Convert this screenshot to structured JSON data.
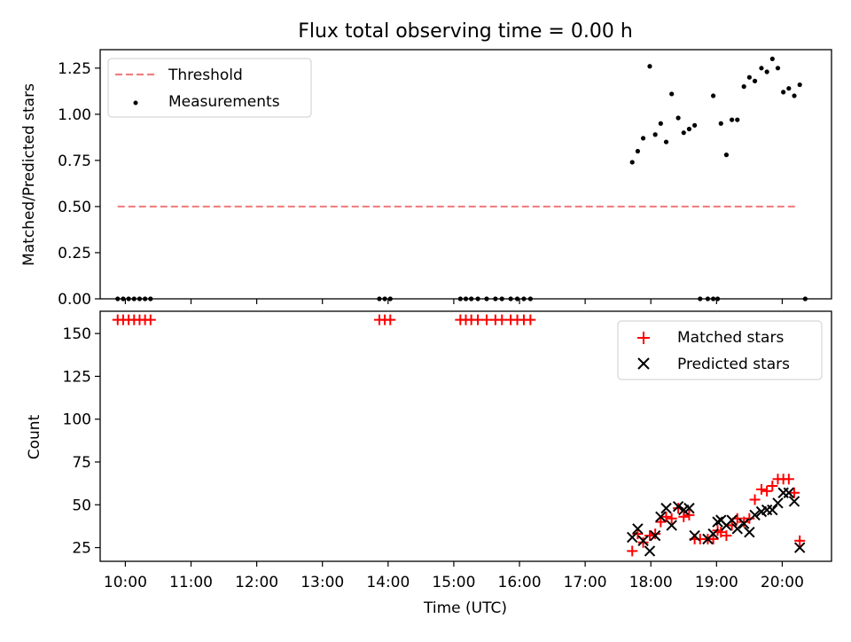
{
  "chart_data": [
    {
      "type": "scatter",
      "title": "Flux total observing time = 0.00 h",
      "ylabel": "Matched/Predicted stars",
      "xlabel": "",
      "xlim": [
        "09:37",
        "20:45"
      ],
      "ylim": [
        0,
        1.35
      ],
      "y_ticks": [
        0.0,
        0.25,
        0.5,
        0.75,
        1.0,
        1.25
      ],
      "y_tick_labels": [
        "0.00",
        "0.25",
        "0.50",
        "0.75",
        "1.00",
        "1.25"
      ],
      "grid": false,
      "legend_position": "upper left",
      "threshold": {
        "name": "Threshold",
        "style": "dashed",
        "color": "#f08080",
        "x": [
          "09:53",
          "20:13"
        ],
        "y": 0.5
      },
      "series": [
        {
          "name": "Measurements",
          "color": "#000000",
          "x": [
            "09:53",
            "09:58",
            "10:03",
            "10:08",
            "10:13",
            "10:18",
            "10:23",
            "13:52",
            "13:57",
            "14:02",
            "15:06",
            "15:11",
            "15:16",
            "15:22",
            "15:30",
            "15:38",
            "15:44",
            "15:52",
            "15:58",
            "16:04",
            "16:10",
            "17:43",
            "17:48",
            "17:53",
            "17:59",
            "18:04",
            "18:09",
            "18:14",
            "18:19",
            "18:25",
            "18:30",
            "18:35",
            "18:40",
            "18:45",
            "18:52",
            "18:57",
            "19:01",
            "18:57",
            "19:04",
            "19:09",
            "19:14",
            "19:19",
            "19:25",
            "19:30",
            "19:35",
            "19:41",
            "19:46",
            "19:51",
            "19:56",
            "20:01",
            "20:06",
            "20:11",
            "20:16",
            "20:21"
          ],
          "y": [
            0,
            0,
            0,
            0,
            0,
            0,
            0,
            0,
            0,
            0,
            0,
            0,
            0,
            0,
            0,
            0,
            0,
            0,
            0,
            0,
            0,
            0.74,
            0.8,
            0.87,
            1.26,
            0.89,
            0.95,
            0.85,
            1.11,
            0.98,
            0.9,
            0.92,
            0.94,
            0,
            0,
            0,
            0,
            1.1,
            0.95,
            0.78,
            0.97,
            0.97,
            1.15,
            1.2,
            1.18,
            1.25,
            1.23,
            1.3,
            1.25,
            1.12,
            1.14,
            1.1,
            1.16,
            0
          ]
        }
      ]
    },
    {
      "type": "scatter",
      "title": "",
      "ylabel": "Count",
      "xlabel": "Time (UTC)",
      "xlim": [
        "09:37",
        "20:45"
      ],
      "ylim": [
        17,
        163
      ],
      "y_ticks": [
        25,
        50,
        75,
        100,
        125,
        150
      ],
      "y_tick_labels": [
        "25",
        "50",
        "75",
        "100",
        "125",
        "150"
      ],
      "x_ticks": [
        "10:00",
        "11:00",
        "12:00",
        "13:00",
        "14:00",
        "15:00",
        "16:00",
        "17:00",
        "18:00",
        "19:00",
        "20:00"
      ],
      "x_tick_labels": [
        "10:00",
        "11:00",
        "12:00",
        "13:00",
        "14:00",
        "15:00",
        "16:00",
        "17:00",
        "18:00",
        "19:00",
        "20:00"
      ],
      "grid": false,
      "legend_position": "upper right",
      "series": [
        {
          "name": "Matched stars",
          "marker": "plus",
          "color": "#ff0000",
          "x": [
            "09:53",
            "09:58",
            "10:03",
            "10:08",
            "10:13",
            "10:18",
            "10:23",
            "13:52",
            "13:57",
            "14:02",
            "15:06",
            "15:11",
            "15:16",
            "15:22",
            "15:30",
            "15:38",
            "15:44",
            "15:52",
            "15:58",
            "16:04",
            "16:10",
            "17:43",
            "17:48",
            "17:53",
            "17:59",
            "18:04",
            "18:09",
            "18:14",
            "18:19",
            "18:25",
            "18:30",
            "18:35",
            "18:40",
            "18:45",
            "18:52",
            "18:57",
            "19:01",
            "19:04",
            "19:09",
            "19:14",
            "19:19",
            "19:25",
            "19:30",
            "19:35",
            "19:41",
            "19:46",
            "19:51",
            "19:56",
            "20:01",
            "20:06",
            "20:11",
            "20:16"
          ],
          "y": [
            158,
            158,
            158,
            158,
            158,
            158,
            158,
            158,
            158,
            158,
            158,
            158,
            158,
            158,
            158,
            158,
            158,
            158,
            158,
            158,
            158,
            23,
            33,
            28,
            32,
            33,
            40,
            43,
            42,
            48,
            43,
            44,
            30,
            30,
            30,
            30,
            35,
            34,
            32,
            38,
            42,
            40,
            42,
            53,
            59,
            58,
            61,
            65,
            65,
            65,
            57,
            29
          ]
        },
        {
          "name": "Predicted stars",
          "marker": "x",
          "color": "#000000",
          "x": [
            "17:43",
            "17:48",
            "17:53",
            "17:59",
            "18:04",
            "18:09",
            "18:14",
            "18:19",
            "18:25",
            "18:30",
            "18:35",
            "18:40",
            "18:52",
            "18:57",
            "19:01",
            "19:04",
            "19:09",
            "19:14",
            "19:19",
            "19:25",
            "19:30",
            "19:35",
            "19:41",
            "19:46",
            "19:51",
            "19:56",
            "20:01",
            "20:06",
            "20:11",
            "20:16"
          ],
          "y": [
            31,
            36,
            29,
            23,
            32,
            43,
            48,
            38,
            49,
            47,
            48,
            32,
            30,
            33,
            40,
            41,
            38,
            41,
            36,
            39,
            34,
            44,
            46,
            47,
            47,
            51,
            57,
            57,
            52,
            25
          ]
        }
      ]
    }
  ]
}
